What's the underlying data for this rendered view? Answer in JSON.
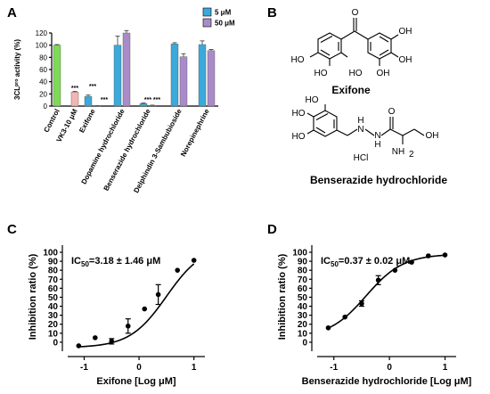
{
  "panels": {
    "a": "A",
    "b": "B",
    "c": "C",
    "d": "D"
  },
  "colors": {
    "control": "#7ed957",
    "vk3": "#f4b6b2",
    "series_5": "#3ba9d9",
    "series_50": "#a98bc9",
    "curve": "#000000"
  },
  "chart_data": [
    {
      "type": "bar",
      "panel": "A",
      "ylabel": "3CLᵖʳᵒ activity (%)",
      "ylim": [
        0,
        120
      ],
      "yticks": [
        "0",
        "20",
        "40",
        "60",
        "80",
        "100",
        "120"
      ],
      "categories": [
        "Control",
        "VK3-10 μM",
        "Exifone",
        "Dopamine hydrochloride",
        "Benserazide hydrochloride",
        "Delphindin 3-Sambubioside",
        "Norepinephrine"
      ],
      "legend_position": "top-right",
      "series": [
        {
          "name": "5 μM",
          "values": [
            null,
            null,
            16,
            100,
            4,
            102,
            101
          ],
          "errors": [
            null,
            null,
            2,
            15,
            1,
            2,
            6
          ]
        },
        {
          "name": "50 μM",
          "values": [
            null,
            null,
            0,
            120,
            1,
            81,
            91
          ],
          "errors": [
            null,
            null,
            0.5,
            4,
            0.5,
            5,
            2
          ]
        }
      ],
      "single_bars": [
        {
          "category": "Control",
          "value": 100,
          "error": 1
        },
        {
          "category": "VK3-10 μM",
          "value": 23,
          "error": 1
        }
      ],
      "significance": [
        {
          "category": "VK3-10 μM",
          "label": "***"
        },
        {
          "category": "Exifone",
          "label": "***"
        },
        {
          "category": "Exifone",
          "label": "***"
        },
        {
          "category": "Benserazide hydrochloride",
          "label": "***"
        },
        {
          "category": "Benserazide hydrochloride",
          "label": "***"
        }
      ]
    },
    {
      "type": "scatter",
      "panel": "C",
      "annotation_prefix": "IC",
      "annotation_sub": "50",
      "annotation_value": "=3.18 ± 1.46 μM",
      "xlabel": "Exifone [Log μM]",
      "ylabel": "Inhibition ratio (%)",
      "xlim": [
        -1.3,
        1.2
      ],
      "ylim": [
        -10,
        100
      ],
      "xticks": [
        "-1",
        "0",
        "1"
      ],
      "yticks": [
        "0",
        "10",
        "20",
        "30",
        "40",
        "50",
        "60",
        "70",
        "80",
        "90",
        "100"
      ],
      "points": [
        {
          "x": -1.1,
          "y": -4,
          "err": 0
        },
        {
          "x": -0.8,
          "y": 5,
          "err": 0
        },
        {
          "x": -0.5,
          "y": 1,
          "err": 3
        },
        {
          "x": -0.2,
          "y": 18,
          "err": 8
        },
        {
          "x": 0.1,
          "y": 37,
          "err": 0
        },
        {
          "x": 0.35,
          "y": 53,
          "err": 11
        },
        {
          "x": 0.7,
          "y": 80,
          "err": 0
        },
        {
          "x": 1.0,
          "y": 91,
          "err": 0
        }
      ],
      "fit": {
        "logIC50": 0.5,
        "hill": 1.3,
        "bottom": -6,
        "top": 108
      }
    },
    {
      "type": "scatter",
      "panel": "D",
      "annotation_prefix": "IC",
      "annotation_sub": "50",
      "annotation_value": "=0.37 ± 0.02 μM",
      "xlabel": "Benserazide hydrochloride [Log μM]",
      "ylabel": "Inhibition ratio (%)",
      "xlim": [
        -1.3,
        1.2
      ],
      "ylim": [
        -10,
        100
      ],
      "xticks": [
        "-1",
        "0",
        "1"
      ],
      "yticks": [
        "0",
        "10",
        "20",
        "30",
        "40",
        "50",
        "60",
        "70",
        "80",
        "90",
        "100"
      ],
      "points": [
        {
          "x": -1.1,
          "y": 16,
          "err": 0
        },
        {
          "x": -0.8,
          "y": 28,
          "err": 0
        },
        {
          "x": -0.5,
          "y": 43,
          "err": 3
        },
        {
          "x": -0.2,
          "y": 69,
          "err": 5
        },
        {
          "x": 0.1,
          "y": 80,
          "err": 0
        },
        {
          "x": 0.4,
          "y": 89,
          "err": 0
        },
        {
          "x": 0.7,
          "y": 96,
          "err": 0
        },
        {
          "x": 1.0,
          "y": 97,
          "err": 0
        }
      ],
      "fit": {
        "logIC50": -0.42,
        "hill": 1.3,
        "bottom": 5,
        "top": 98
      }
    }
  ],
  "molecules": {
    "exifone": {
      "name": "Exifone",
      "atoms": [
        "O",
        "HO",
        "OH",
        "HO",
        "OH",
        "HO",
        "OH"
      ]
    },
    "benserazide": {
      "name": "Benserazide hydrochloride",
      "atoms": [
        "HO",
        "HO",
        "HO",
        "N",
        "H",
        "N",
        "H",
        "O",
        "OH",
        "NH",
        "2",
        "HCl"
      ]
    }
  }
}
